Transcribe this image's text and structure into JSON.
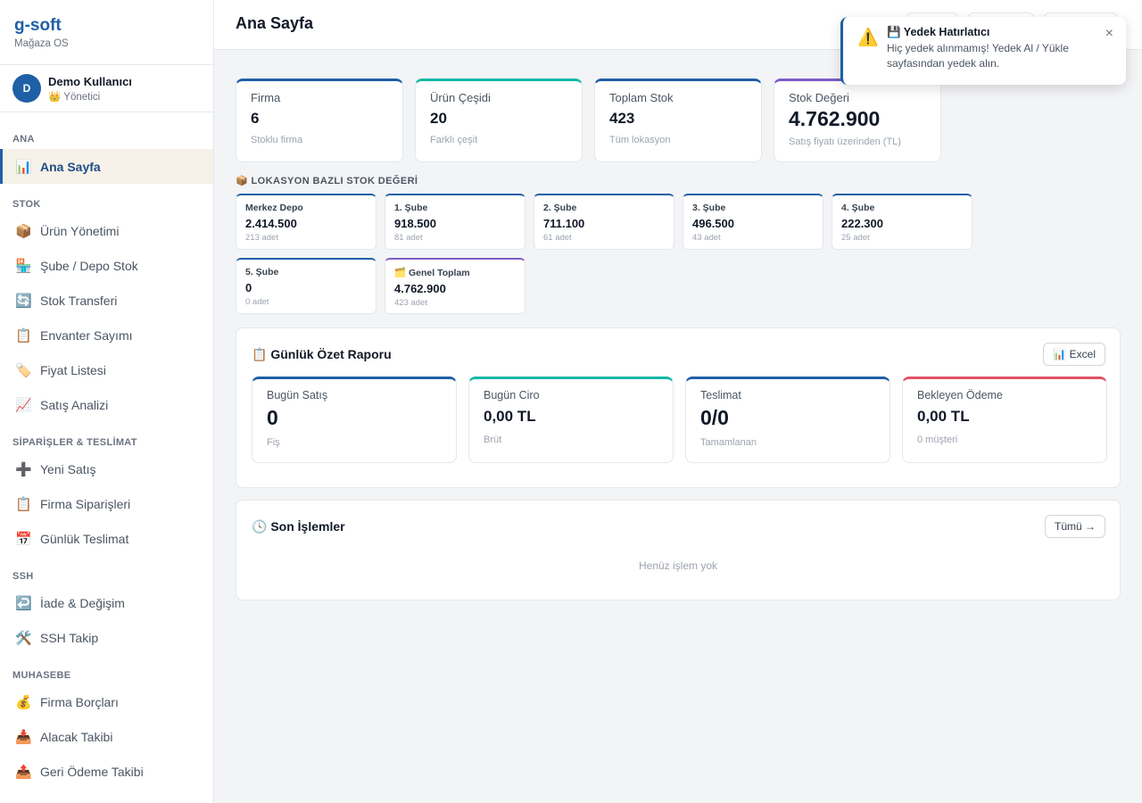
{
  "brand": {
    "name": "g-soft",
    "subtitle": "Mağaza OS"
  },
  "user": {
    "initial": "D",
    "name": "Demo Kullanıcı",
    "role": "👑 Yönetici"
  },
  "nav": {
    "sections": {
      "ana": "ANA",
      "stok": "STOK",
      "siparis": "SİPARİŞLER & TESLİMAT",
      "ssh": "SSH",
      "muhasebe": "MUHASEBE"
    },
    "items": {
      "home": {
        "icon": "📊",
        "label": "Ana Sayfa"
      },
      "products": {
        "icon": "📦",
        "label": "Ürün Yönetimi"
      },
      "branch_stock": {
        "icon": "🏪",
        "label": "Şube / Depo Stok"
      },
      "transfer": {
        "icon": "🔄",
        "label": "Stok Transferi"
      },
      "inventory": {
        "icon": "📋",
        "label": "Envanter Sayımı"
      },
      "price_list": {
        "icon": "🏷️",
        "label": "Fiyat Listesi"
      },
      "sales_analysis": {
        "icon": "📈",
        "label": "Satış Analizi"
      },
      "new_sale": {
        "icon": "➕",
        "label": "Yeni Satış"
      },
      "company_orders": {
        "icon": "📋",
        "label": "Firma Siparişleri"
      },
      "daily_delivery": {
        "icon": "📅",
        "label": "Günlük Teslimat"
      },
      "returns": {
        "icon": "↩️",
        "label": "İade & Değişim"
      },
      "ssh_tracking": {
        "icon": "🛠️",
        "label": "SSH Takip"
      },
      "company_debts": {
        "icon": "💰",
        "label": "Firma Borçları"
      },
      "receivables": {
        "icon": "📥",
        "label": "Alacak Takibi"
      },
      "refunds": {
        "icon": "📤",
        "label": "Geri Ödeme Takibi"
      }
    }
  },
  "header": {
    "title": "Ana Sayfa"
  },
  "stats": [
    {
      "label": "Firma",
      "value": "6",
      "sub": "Stoklu firma"
    },
    {
      "label": "Ürün Çeşidi",
      "value": "20",
      "sub": "Farklı çeşit"
    },
    {
      "label": "Toplam Stok",
      "value": "423",
      "sub": "Tüm lokasyon"
    },
    {
      "label": "Stok Değeri",
      "value": "4.762.900",
      "sub": "Satış fiyatı üzerinden (TL)"
    }
  ],
  "locations": {
    "heading": "📦 LOKASYON BAZLI STOK DEĞERİ",
    "items": [
      {
        "name": "Merkez Depo",
        "value": "2.414.500",
        "sub": "213 adet"
      },
      {
        "name": "1. Şube",
        "value": "918.500",
        "sub": "81 adet"
      },
      {
        "name": "2. Şube",
        "value": "711.100",
        "sub": "61 adet"
      },
      {
        "name": "3. Şube",
        "value": "496.500",
        "sub": "43 adet"
      },
      {
        "name": "4. Şube",
        "value": "222.300",
        "sub": "25 adet"
      },
      {
        "name": "5. Şube",
        "value": "0",
        "sub": "0 adet"
      }
    ],
    "total": {
      "name": "🗂️ Genel Toplam",
      "value": "4.762.900",
      "sub": "423 adet"
    }
  },
  "daily": {
    "title": "📋 Günlük Özet Raporu",
    "excel_label": "📊 Excel",
    "cards": [
      {
        "label": "Bugün Satış",
        "value": "0",
        "sub": "Fiş"
      },
      {
        "label": "Bugün Ciro",
        "value": "0,00 TL",
        "sub": "Brüt"
      },
      {
        "label": "Teslimat",
        "value": "0/0",
        "sub": "Tamamlanan"
      },
      {
        "label": "Bekleyen Ödeme",
        "value": "0,00 TL",
        "sub": "0 müşteri"
      }
    ]
  },
  "recent": {
    "title": "🕓 Son İşlemler",
    "all_label": "Tümü →",
    "empty": "Henüz işlem yok"
  },
  "toast": {
    "icon": "⚠️",
    "title": "💾 Yedek Hatırlatıcı",
    "message": "Hiç yedek alınmamış! Yedek Al / Yükle sayfasından yedek alın.",
    "close": "×"
  }
}
